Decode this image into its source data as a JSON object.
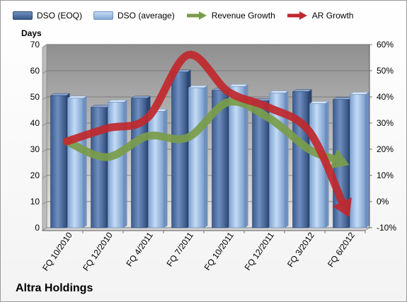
{
  "chart_data": {
    "type": "bar",
    "title": "",
    "company_label": "Altra Holdings",
    "ylabel_left": "Days",
    "ylim_left": [
      0,
      70
    ],
    "yticks_left": [
      "0",
      "10",
      "20",
      "30",
      "40",
      "50",
      "60",
      "70"
    ],
    "ylim_right": [
      -10,
      60
    ],
    "yticks_right": [
      "-10%",
      "0%",
      "10%",
      "20%",
      "30%",
      "40%",
      "50%",
      "60%"
    ],
    "categories": [
      "FQ 10/2010",
      "FQ 12/2010",
      "FQ 4/2011",
      "FQ 7/2011",
      "FQ 10/2011",
      "FQ 12/2011",
      "FQ 3/2012",
      "FQ 6/2012"
    ],
    "series": [
      {
        "name": "DSO (EOQ)",
        "kind": "bar",
        "axis": "left",
        "color": "#4f6fa0",
        "values": [
          50.5,
          46,
          49.5,
          59.5,
          52.5,
          48.5,
          52,
          49
        ]
      },
      {
        "name": "DSO (average)",
        "kind": "bar",
        "axis": "left",
        "color": "#9dbde3",
        "values": [
          49.5,
          48,
          44.5,
          53.5,
          54,
          51.5,
          47.5,
          51
        ]
      },
      {
        "name": "Revenue Growth",
        "kind": "arrow-line",
        "axis": "right",
        "color": "#7a9c4a",
        "values": [
          23,
          17,
          25,
          24.5,
          38,
          32,
          20,
          14
        ]
      },
      {
        "name": "AR Growth",
        "kind": "arrow-line",
        "axis": "right",
        "color": "#c0282d",
        "values": [
          23,
          28,
          32,
          56,
          42,
          36,
          27,
          -6
        ]
      }
    ],
    "grid": true,
    "legend_position": "top"
  }
}
